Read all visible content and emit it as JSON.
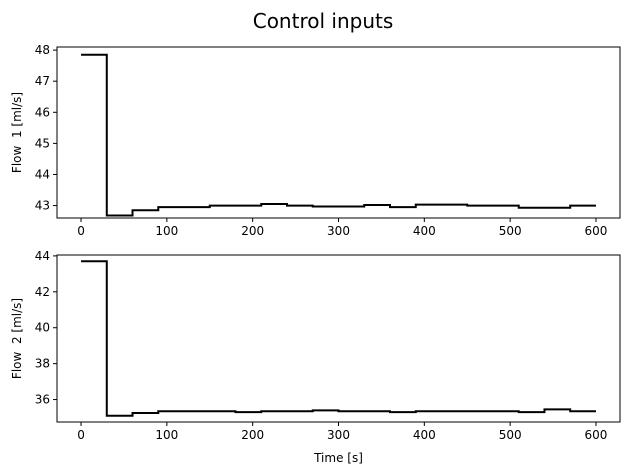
{
  "figure": {
    "title": "Control inputs"
  },
  "chart_data": [
    {
      "type": "line",
      "line_style": "step-post",
      "color": "#000000",
      "grid": false,
      "xlabel": "",
      "ylabel": "Flow  1 [ml/s]",
      "xlim": [
        -28,
        628
      ],
      "ylim": [
        42.6,
        48.1
      ],
      "xticks": [
        0,
        100,
        200,
        300,
        400,
        500,
        600
      ],
      "yticks": [
        43,
        44,
        45,
        46,
        47,
        48
      ],
      "x": [
        0,
        30,
        60,
        90,
        120,
        150,
        180,
        210,
        240,
        270,
        300,
        330,
        360,
        390,
        420,
        450,
        480,
        510,
        540,
        570,
        600
      ],
      "y": [
        47.85,
        42.68,
        42.85,
        42.95,
        42.95,
        43.0,
        43.0,
        43.05,
        43.0,
        42.97,
        42.97,
        43.02,
        42.95,
        43.03,
        43.03,
        43.0,
        43.0,
        42.93,
        42.93,
        43.0,
        43.0
      ]
    },
    {
      "type": "line",
      "line_style": "step-post",
      "color": "#000000",
      "grid": false,
      "xlabel": "Time [s]",
      "ylabel": "Flow  2 [ml/s]",
      "xlim": [
        -28,
        628
      ],
      "ylim": [
        34.75,
        44.05
      ],
      "xticks": [
        0,
        100,
        200,
        300,
        400,
        500,
        600
      ],
      "yticks": [
        36,
        38,
        40,
        42,
        44
      ],
      "x": [
        0,
        30,
        60,
        90,
        120,
        150,
        180,
        210,
        240,
        270,
        300,
        330,
        360,
        390,
        420,
        450,
        480,
        510,
        540,
        570,
        600
      ],
      "y": [
        43.7,
        35.1,
        35.25,
        35.35,
        35.35,
        35.35,
        35.3,
        35.35,
        35.35,
        35.4,
        35.35,
        35.35,
        35.3,
        35.35,
        35.35,
        35.35,
        35.35,
        35.3,
        35.45,
        35.35,
        35.35
      ]
    }
  ]
}
